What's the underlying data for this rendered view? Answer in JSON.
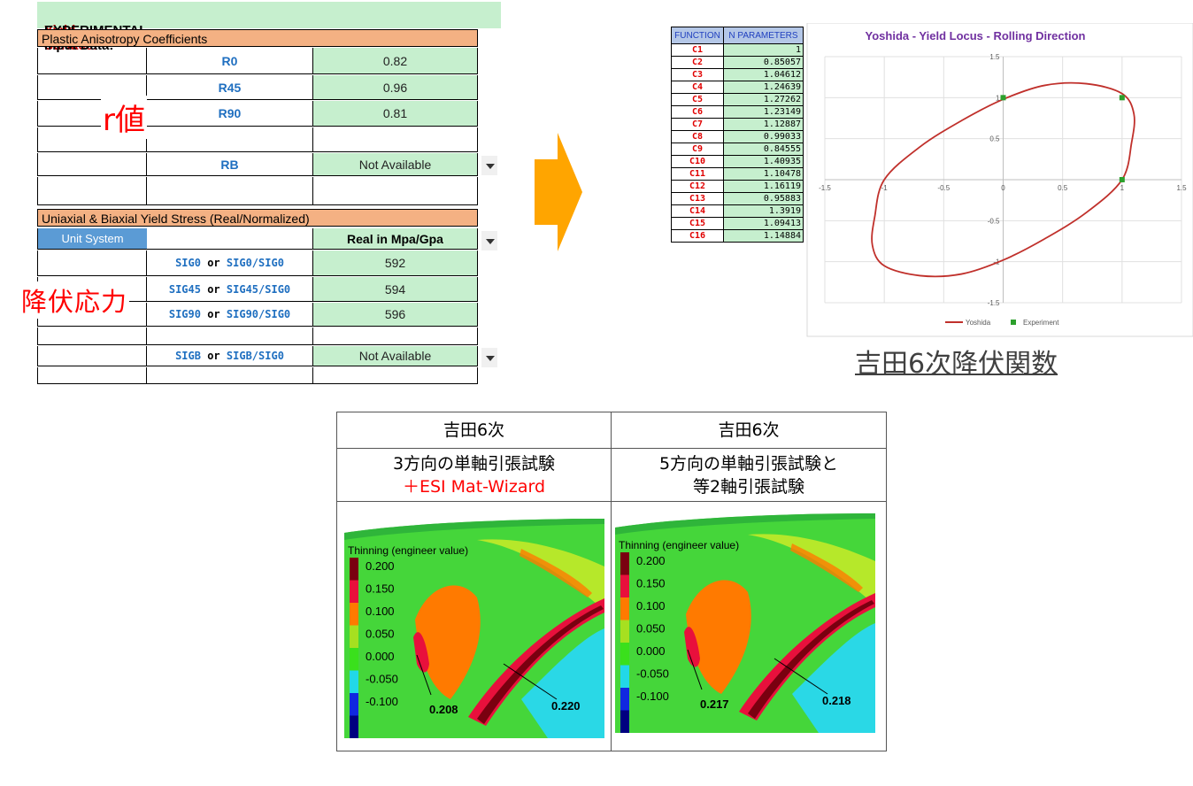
{
  "sheet": {
    "title_prefix": "Yield Surface:",
    "title_rest": " EXPERIMENTAL Input Data:",
    "section1": "Plastic Anisotropy Coefficients",
    "r_rows": [
      {
        "label": "R0",
        "value": "0.82"
      },
      {
        "label": "R45",
        "value": "0.96"
      },
      {
        "label": "R90",
        "value": "0.81"
      },
      {
        "label": "",
        "value": ""
      },
      {
        "label": "RB",
        "value": "Not Available"
      }
    ],
    "r_label": "r値",
    "section2": "Uniaxial & Biaxial Yield Stress (Real/Normalized)",
    "unit_system_label": "Unit System",
    "unit_value": "Real in Mpa/Gpa",
    "or_word": "or",
    "sig_rows": [
      {
        "a": "SIG0",
        "b": "SIG0/SIG0",
        "value": "592"
      },
      {
        "a": "SIG45",
        "b": "SIG45/SIG0",
        "value": "594"
      },
      {
        "a": "SIG90",
        "b": "SIG90/SIG0",
        "value": "596"
      },
      {
        "a": "",
        "b": "",
        "value": ""
      },
      {
        "a": "SIGB",
        "b": "SIGB/SIG0",
        "value": "Not Available"
      }
    ],
    "stress_label": "降伏応力"
  },
  "params": {
    "header_a": "FUNCTION",
    "header_b": "N PARAMETERS",
    "rows": [
      {
        "name": "C1",
        "value": "1"
      },
      {
        "name": "C2",
        "value": "0.85057"
      },
      {
        "name": "C3",
        "value": "1.04612"
      },
      {
        "name": "C4",
        "value": "1.24639"
      },
      {
        "name": "C5",
        "value": "1.27262"
      },
      {
        "name": "C6",
        "value": "1.23149"
      },
      {
        "name": "C7",
        "value": "1.12887"
      },
      {
        "name": "C8",
        "value": "0.99033"
      },
      {
        "name": "C9",
        "value": "0.84555"
      },
      {
        "name": "C10",
        "value": "1.40935"
      },
      {
        "name": "C11",
        "value": "1.10478"
      },
      {
        "name": "C12",
        "value": "1.16119"
      },
      {
        "name": "C13",
        "value": "0.95883"
      },
      {
        "name": "C14",
        "value": "1.3919"
      },
      {
        "name": "C15",
        "value": "1.09413"
      },
      {
        "name": "C16",
        "value": "1.14884"
      }
    ]
  },
  "chart_data": {
    "type": "scatter",
    "title": "Yoshida - Yield Locus - Rolling Direction",
    "xlim": [
      -1.5,
      1.5
    ],
    "ylim": [
      -1.5,
      1.5
    ],
    "xticks": [
      "-1.5",
      "-1",
      "-0.5",
      "0",
      "0.5",
      "1",
      "1.5"
    ],
    "yticks": [
      "1.5",
      "1",
      "0.5",
      "0",
      "-0.5",
      "-1",
      "-1.5"
    ],
    "grid": true,
    "legend_position": "bottom",
    "series": [
      {
        "name": "Yoshida",
        "kind": "line",
        "color": "#c0302b",
        "x": [
          1.0,
          1.08,
          1.1,
          1.0,
          0.7,
          0.35,
          0.0,
          -0.35,
          -0.7,
          -1.0,
          -1.08,
          -1.1,
          -1.0,
          -0.7,
          -0.35,
          0.0,
          0.35,
          0.7,
          1.0
        ],
        "y": [
          0.0,
          0.45,
          0.8,
          1.05,
          1.17,
          1.15,
          0.98,
          0.72,
          0.4,
          0.0,
          -0.45,
          -0.8,
          -1.05,
          -1.17,
          -1.15,
          -0.98,
          -0.72,
          -0.4,
          0.0
        ]
      },
      {
        "name": "Experiment",
        "kind": "points",
        "color": "#2ca02c",
        "x": [
          0,
          1,
          1
        ],
        "y": [
          1,
          1,
          0
        ]
      }
    ]
  },
  "chart_caption": "吉田6次降伏関数",
  "compare": {
    "columns": [
      {
        "head": "吉田6次",
        "line1": "3方向の単軸引張試験",
        "line2": "＋ESI Mat-Wizard",
        "legend_title": "Thinning (engineer value)",
        "callout_a": "0.208",
        "callout_b": "0.220"
      },
      {
        "head": "吉田6次",
        "line1": "5方向の単軸引張試験と",
        "line2": "等2軸引張試験",
        "legend_title": "Thinning (engineer value)",
        "callout_a": "0.217",
        "callout_b": "0.218"
      }
    ],
    "legend_values": [
      "0.200",
      "0.150",
      "0.100",
      "0.050",
      "0.000",
      "-0.050",
      "-0.100"
    ],
    "legend_colors": [
      "#7a0010",
      "#e8103c",
      "#ff7a00",
      "#a6e020",
      "#3ae01c",
      "#22d8e8",
      "#1028e0",
      "#000080"
    ]
  }
}
